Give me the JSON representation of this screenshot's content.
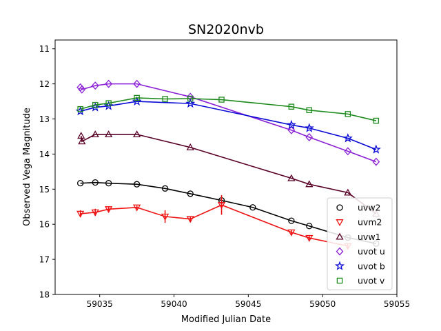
{
  "chart_data": {
    "type": "scatter",
    "title": "SN2020nvb",
    "xlabel": "Modified Julian Date",
    "ylabel": "Observed Vega Magnitude",
    "xlim": [
      59032,
      59055
    ],
    "ylim": [
      18,
      10.75
    ],
    "y_inverted": true,
    "xticks": [
      59035,
      59040,
      59045,
      59050,
      59055
    ],
    "yticks": [
      11,
      12,
      13,
      14,
      15,
      16,
      17,
      18
    ],
    "grid": false,
    "legend_position": "lower-right",
    "series": [
      {
        "name": "uvw2",
        "color": "#000000",
        "marker": "circle",
        "x": [
          59033.7,
          59034.7,
          59035.6,
          59037.5,
          59039.4,
          59041.1,
          59043.2,
          59045.3,
          59047.9,
          59049.1,
          59051.7,
          59053.6
        ],
        "y": [
          14.83,
          14.81,
          14.83,
          14.86,
          14.98,
          15.13,
          15.32,
          15.52,
          15.9,
          16.05,
          16.38,
          16.55
        ],
        "err": [
          0,
          0,
          0,
          0,
          0,
          0,
          0,
          0,
          0,
          0,
          0,
          0
        ]
      },
      {
        "name": "uvm2",
        "color": "#ee1111",
        "marker": "triangle-down",
        "x": [
          59033.7,
          59034.7,
          59035.6,
          59037.5,
          59039.4,
          59041.1,
          59043.2,
          59047.9,
          59049.1,
          59051.7
        ],
        "y": [
          15.7,
          15.66,
          15.57,
          15.52,
          15.78,
          15.85,
          15.45,
          16.23,
          16.39,
          16.62
        ],
        "err": [
          0.1,
          0.1,
          0.08,
          0.05,
          0.18,
          0.06,
          0.28,
          0.06,
          0.05,
          0.06
        ]
      },
      {
        "name": "uvw1",
        "color": "#5a0026",
        "marker": "triangle-up",
        "x": [
          59033.75,
          59033.8,
          59034.7,
          59035.6,
          59037.5,
          59041.1,
          59047.9,
          59049.1,
          59051.7,
          59053.6
        ],
        "y": [
          13.48,
          13.64,
          13.44,
          13.44,
          13.44,
          13.81,
          14.69,
          14.86,
          15.1,
          15.7
        ],
        "err": [
          0,
          0,
          0,
          0,
          0,
          0,
          0,
          0,
          0,
          0
        ]
      },
      {
        "name": "uvot u",
        "color": "#8b1fd6",
        "marker": "diamond",
        "x": [
          59033.7,
          59033.8,
          59034.7,
          59035.6,
          59037.5,
          59041.1,
          59047.9,
          59049.1,
          59051.7,
          59053.6
        ],
        "y": [
          12.1,
          12.16,
          12.05,
          12.0,
          12.0,
          12.37,
          13.32,
          13.52,
          13.92,
          14.22
        ],
        "err": [
          0,
          0,
          0,
          0,
          0,
          0,
          0,
          0,
          0,
          0
        ]
      },
      {
        "name": "uvot b",
        "color": "#0a0ad6",
        "marker": "star",
        "x": [
          59033.7,
          59034.7,
          59035.6,
          59037.5,
          59041.1,
          59047.9,
          59049.1,
          59051.7,
          59053.6
        ],
        "y": [
          12.78,
          12.67,
          12.63,
          12.5,
          12.56,
          13.17,
          13.26,
          13.55,
          13.87
        ],
        "err": [
          0,
          0,
          0,
          0,
          0,
          0,
          0,
          0,
          0
        ]
      },
      {
        "name": "uvot v",
        "color": "#1a8a1a",
        "marker": "square",
        "x": [
          59033.7,
          59034.7,
          59035.6,
          59037.5,
          59039.4,
          59041.1,
          59043.2,
          59047.9,
          59049.1,
          59051.7,
          59053.6
        ],
        "y": [
          12.72,
          12.6,
          12.55,
          12.4,
          12.43,
          12.42,
          12.45,
          12.65,
          12.75,
          12.86,
          13.05
        ],
        "err": [
          0,
          0,
          0,
          0,
          0,
          0,
          0,
          0,
          0,
          0,
          0
        ]
      }
    ]
  }
}
